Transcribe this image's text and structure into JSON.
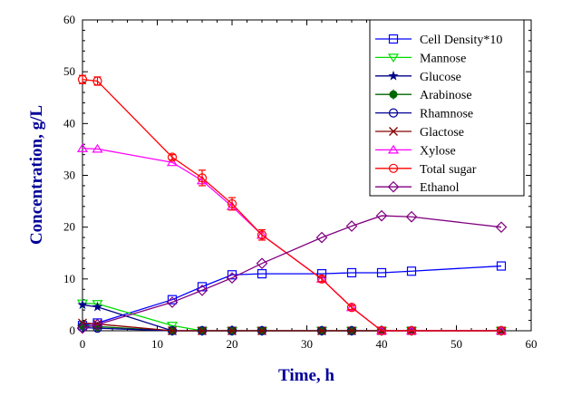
{
  "chart_data": {
    "type": "line",
    "title": "",
    "xlabel": "Time, h",
    "ylabel": "Concentration, g/L",
    "xlim": [
      0,
      60
    ],
    "ylim": [
      0,
      60
    ],
    "xticks": [
      "0",
      "10",
      "20",
      "30",
      "40",
      "50",
      "60"
    ],
    "yticks": [
      "0",
      "10",
      "20",
      "30",
      "40",
      "50",
      "60"
    ],
    "grid": false,
    "legend_position": "top-right",
    "series": [
      {
        "name": "Cell Density*10",
        "color": "#0000ff",
        "marker": "square",
        "x": [
          0,
          2,
          12,
          16,
          20,
          24,
          32,
          36,
          40,
          44,
          56
        ],
        "y": [
          1.0,
          1.5,
          6.0,
          8.5,
          10.8,
          11.0,
          11.0,
          11.2,
          11.2,
          11.5,
          12.5
        ]
      },
      {
        "name": "Mannose",
        "color": "#00dd00",
        "marker": "triangle-down",
        "x": [
          0,
          2,
          12,
          16,
          20,
          24,
          32,
          36,
          40,
          44,
          56
        ],
        "y": [
          5.3,
          5.2,
          1.0,
          0,
          0,
          0,
          0,
          0,
          0,
          0,
          0
        ]
      },
      {
        "name": "Glucose",
        "color": "#000088",
        "marker": "star",
        "x": [
          0,
          2,
          12,
          16,
          20,
          24,
          32,
          36,
          40,
          44,
          56
        ],
        "y": [
          5.0,
          4.6,
          0,
          0,
          0,
          0,
          0,
          0,
          0,
          0,
          0
        ]
      },
      {
        "name": "Arabinose",
        "color": "#006600",
        "marker": "plus-circle",
        "x": [
          0,
          2,
          12,
          16,
          20,
          24,
          32,
          36,
          40,
          44,
          56
        ],
        "y": [
          1.0,
          0.8,
          0,
          0,
          0,
          0,
          0,
          0,
          0,
          0,
          0
        ]
      },
      {
        "name": "Rhamnose",
        "color": "#000099",
        "marker": "circle",
        "x": [
          0,
          2,
          12,
          16,
          20,
          24,
          32,
          36,
          40,
          44,
          56
        ],
        "y": [
          0.6,
          0.5,
          0,
          0,
          0,
          0,
          0,
          0,
          0,
          0,
          0
        ]
      },
      {
        "name": "Glactose",
        "color": "#880000",
        "marker": "x",
        "x": [
          0,
          2,
          12,
          16,
          20,
          24,
          32,
          36,
          40,
          44,
          56
        ],
        "y": [
          1.5,
          1.3,
          0,
          0,
          0,
          0,
          0,
          0,
          0,
          0,
          0
        ]
      },
      {
        "name": "Xylose",
        "color": "#ff00ff",
        "marker": "triangle-up",
        "x": [
          0,
          2,
          12,
          16,
          20,
          24,
          32,
          36,
          40,
          44,
          56
        ],
        "y": [
          35.2,
          35.1,
          32.5,
          29.0,
          24.0,
          18.5,
          10.0,
          4.5,
          0,
          0,
          0
        ]
      },
      {
        "name": "Total sugar",
        "color": "#ff0000",
        "marker": "circle",
        "x": [
          0,
          2,
          12,
          16,
          20,
          24,
          32,
          36,
          40,
          44,
          56
        ],
        "y": [
          48.5,
          48.2,
          33.5,
          29.5,
          24.5,
          18.5,
          10.0,
          4.5,
          0,
          0,
          0
        ],
        "err": [
          0.8,
          0.8,
          0.5,
          1.5,
          1.2,
          1.0,
          0.5,
          0.4,
          0,
          0,
          0
        ]
      },
      {
        "name": "Ethanol",
        "color": "#800080",
        "marker": "diamond",
        "x": [
          0,
          2,
          12,
          16,
          20,
          24,
          32,
          36,
          40,
          44,
          56
        ],
        "y": [
          0.5,
          1.2,
          5.5,
          7.8,
          10.2,
          13.0,
          18.0,
          20.2,
          22.2,
          22.0,
          20.0
        ]
      }
    ]
  }
}
